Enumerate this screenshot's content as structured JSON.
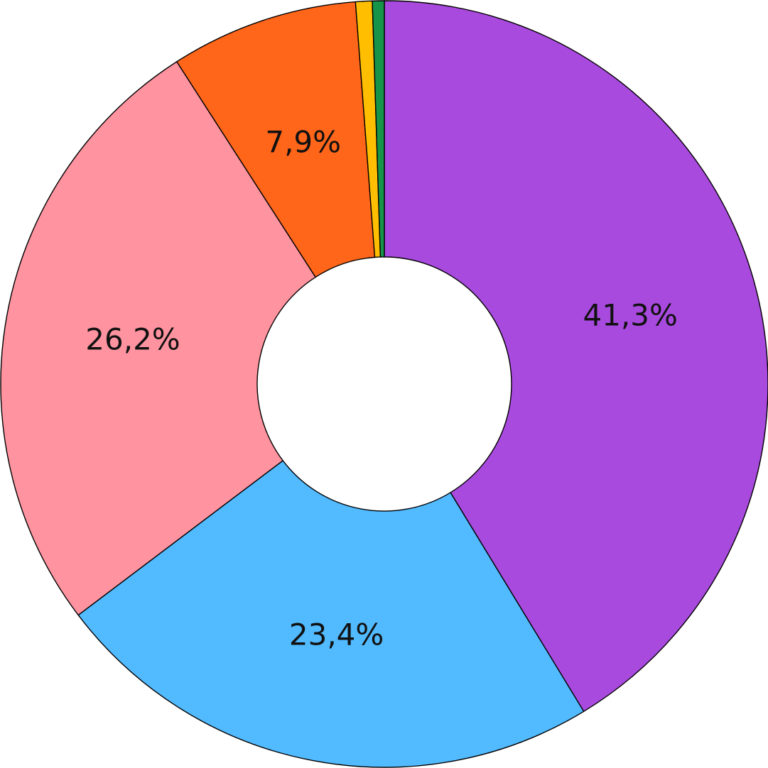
{
  "chart_data": {
    "type": "pie",
    "variant": "donut",
    "title": "",
    "legend": "none",
    "slices": [
      {
        "label": "41,3%",
        "value": 41.3,
        "color": "#a94adf"
      },
      {
        "label": "23,4%",
        "value": 23.4,
        "color": "#52baff"
      },
      {
        "label": "26,2%",
        "value": 26.2,
        "color": "#ff94a0"
      },
      {
        "label": "7,9%",
        "value": 7.9,
        "color": "#ff661a"
      },
      {
        "label": "",
        "value": 0.7,
        "color": "#ffbf00"
      },
      {
        "label": "",
        "value": 0.5,
        "color": "#15944a"
      }
    ]
  }
}
